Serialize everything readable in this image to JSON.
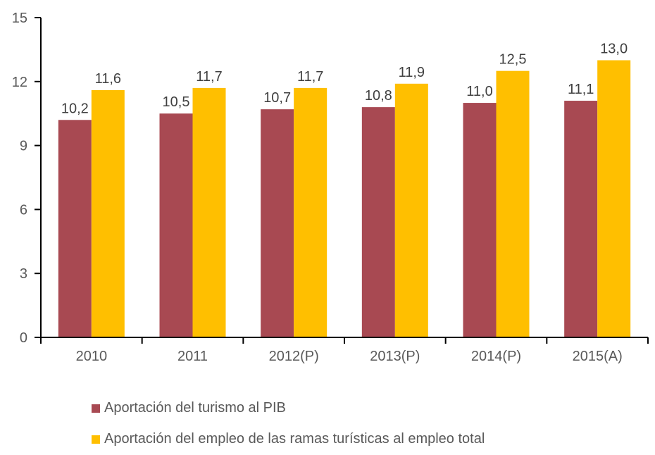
{
  "chart_data": {
    "type": "bar",
    "title": "",
    "xlabel": "",
    "ylabel": "",
    "ylim": [
      0,
      15
    ],
    "yticks": [
      0,
      3,
      6,
      9,
      12,
      15
    ],
    "ytick_labels": [
      "0",
      "3",
      "6",
      "9",
      "12",
      "15"
    ],
    "grid": false,
    "categories": [
      "2010",
      "2011",
      "2012(P)",
      "2013(P)",
      "2014(P)",
      "2015(A)"
    ],
    "series": [
      {
        "name": "Aportación del turismo al PIB",
        "color": "#A84952",
        "values": [
          10.2,
          10.5,
          10.7,
          10.8,
          11.0,
          11.1
        ],
        "labels": [
          "10,2",
          "10,5",
          "10,7",
          "10,8",
          "11,0",
          "11,1"
        ]
      },
      {
        "name": "Aportación del empleo de las ramas turísticas al empleo total",
        "color": "#FFBF00",
        "values": [
          11.6,
          11.7,
          11.7,
          11.9,
          12.5,
          13.0
        ],
        "labels": [
          "11,6",
          "11,7",
          "11,7",
          "11,9",
          "12,5",
          "13,0"
        ]
      }
    ],
    "legend_position": "bottom-left"
  }
}
